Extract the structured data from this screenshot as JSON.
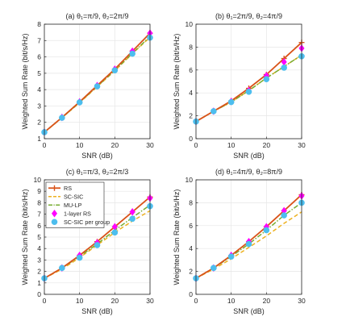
{
  "figure": {
    "xlabel": "SNR (dB)",
    "ylabel": "Weighted Sum Rate (bit/s/Hz)"
  },
  "legend": {
    "location": "upper-left of panel (c)",
    "entries": [
      {
        "label": "RS",
        "color": "#d95319",
        "style": "solid",
        "marker": "plus"
      },
      {
        "label": "SC-SIC",
        "color": "#edb120",
        "style": "dashed",
        "marker": "none"
      },
      {
        "label": "MU-LP",
        "color": "#77ac30",
        "style": "dashdot",
        "marker": "none"
      },
      {
        "label": "1-layer RS",
        "color": "#ff00ff",
        "style": "none",
        "marker": "diamond"
      },
      {
        "label": "SC-SIC per group",
        "color": "#4dbeee",
        "style": "none",
        "marker": "circle"
      }
    ]
  },
  "chart_data": [
    {
      "type": "line",
      "title": "(a) θ₁=π/9, θ₂=2π/9",
      "xlabel": "SNR (dB)",
      "ylabel": "Weighted Sum Rate (bit/s/Hz)",
      "xlim": [
        0,
        30
      ],
      "ylim": [
        1,
        8
      ],
      "xticks": [
        0,
        10,
        20,
        30
      ],
      "yticks": [
        1,
        2,
        3,
        4,
        5,
        6,
        7,
        8
      ],
      "grid": true,
      "x": [
        0,
        5,
        10,
        15,
        20,
        25,
        30
      ],
      "series": [
        {
          "name": "RS",
          "values": [
            1.4,
            2.3,
            3.25,
            4.25,
            5.25,
            6.35,
            7.45
          ]
        },
        {
          "name": "SC-SIC",
          "values": [
            1.38,
            2.28,
            3.2,
            4.18,
            5.15,
            6.2,
            7.2
          ]
        },
        {
          "name": "MU-LP",
          "values": [
            1.4,
            2.28,
            3.22,
            4.2,
            5.18,
            6.22,
            7.25
          ]
        },
        {
          "name": "1-layer RS",
          "values": [
            1.4,
            2.3,
            3.25,
            4.25,
            5.25,
            6.35,
            7.45
          ]
        },
        {
          "name": "SC-SIC per group",
          "values": [
            1.4,
            2.28,
            3.22,
            4.2,
            5.18,
            6.2,
            7.18
          ]
        }
      ]
    },
    {
      "type": "line",
      "title": "(b) θ₁=2π/9, θ₂=4π/9",
      "xlabel": "SNR (dB)",
      "ylabel": "Weighted Sum Rate (bit/s/Hz)",
      "xlim": [
        0,
        30
      ],
      "ylim": [
        0,
        10
      ],
      "xticks": [
        0,
        10,
        20,
        30
      ],
      "yticks": [
        0,
        2,
        4,
        6,
        8,
        10
      ],
      "grid": true,
      "x": [
        0,
        5,
        10,
        15,
        20,
        25,
        30
      ],
      "series": [
        {
          "name": "RS",
          "values": [
            1.5,
            2.4,
            3.3,
            4.4,
            5.6,
            7.0,
            8.4
          ]
        },
        {
          "name": "SC-SIC",
          "values": [
            1.5,
            2.4,
            3.2,
            4.2,
            5.3,
            6.3,
            7.3
          ]
        },
        {
          "name": "MU-LP",
          "values": [
            1.5,
            2.4,
            3.2,
            4.2,
            5.3,
            6.3,
            7.3
          ]
        },
        {
          "name": "1-layer RS",
          "values": [
            1.5,
            2.4,
            3.25,
            4.2,
            5.5,
            6.7,
            7.9
          ]
        },
        {
          "name": "SC-SIC per group",
          "values": [
            1.5,
            2.4,
            3.2,
            4.1,
            5.2,
            6.2,
            7.2
          ]
        }
      ]
    },
    {
      "type": "line",
      "title": "(c) θ₁=π/3, θ₂=2π/3",
      "xlabel": "SNR (dB)",
      "ylabel": "Weighted Sum Rate (bit/s/Hz)",
      "xlim": [
        0,
        30
      ],
      "ylim": [
        0,
        10
      ],
      "xticks": [
        0,
        10,
        20,
        30
      ],
      "yticks": [
        0,
        1,
        2,
        3,
        4,
        5,
        6,
        7,
        8,
        9,
        10
      ],
      "grid": true,
      "x": [
        0,
        5,
        10,
        15,
        20,
        25,
        30
      ],
      "series": [
        {
          "name": "RS",
          "values": [
            1.4,
            2.3,
            3.4,
            4.6,
            5.9,
            7.2,
            8.5
          ]
        },
        {
          "name": "SC-SIC",
          "values": [
            1.4,
            2.2,
            3.2,
            4.3,
            5.4,
            6.4,
            7.3
          ]
        },
        {
          "name": "MU-LP",
          "values": [
            1.4,
            2.3,
            3.3,
            4.4,
            5.6,
            6.7,
            7.8
          ]
        },
        {
          "name": "1-layer RS",
          "values": [
            1.4,
            2.3,
            3.4,
            4.5,
            5.9,
            7.2,
            8.4
          ]
        },
        {
          "name": "SC-SIC per group",
          "values": [
            1.4,
            2.3,
            3.2,
            4.3,
            5.4,
            6.6,
            7.7
          ]
        }
      ]
    },
    {
      "type": "line",
      "title": "(d) θ₁=4π/9, θ₂=8π/9",
      "xlabel": "SNR (dB)",
      "ylabel": "Weighted Sum Rate (bit/s/Hz)",
      "xlim": [
        0,
        30
      ],
      "ylim": [
        0,
        10
      ],
      "xticks": [
        0,
        10,
        20,
        30
      ],
      "yticks": [
        0,
        2,
        4,
        6,
        8,
        10
      ],
      "grid": true,
      "x": [
        0,
        5,
        10,
        15,
        20,
        25,
        30
      ],
      "series": [
        {
          "name": "RS",
          "values": [
            1.4,
            2.3,
            3.4,
            4.6,
            5.9,
            7.3,
            8.7
          ]
        },
        {
          "name": "SC-SIC",
          "values": [
            1.4,
            2.2,
            3.1,
            4.1,
            5.1,
            6.2,
            7.2
          ]
        },
        {
          "name": "MU-LP",
          "values": [
            1.4,
            2.3,
            3.3,
            4.4,
            5.6,
            6.9,
            8.0
          ]
        },
        {
          "name": "1-layer RS",
          "values": [
            1.4,
            2.3,
            3.4,
            4.6,
            5.9,
            7.3,
            8.6
          ]
        },
        {
          "name": "SC-SIC per group",
          "values": [
            1.4,
            2.3,
            3.3,
            4.4,
            5.6,
            6.9,
            8.0
          ]
        }
      ]
    }
  ]
}
